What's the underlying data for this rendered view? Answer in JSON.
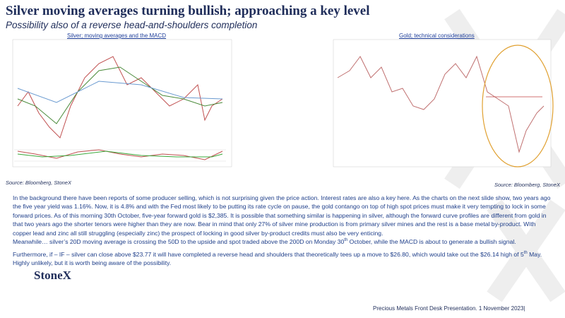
{
  "header": {
    "title": "Silver moving averages turning bullish; approaching a key level",
    "subtitle": "Possibility also of a reverse head-and-shoulders completion"
  },
  "figures": [
    {
      "caption": "Silver; moving averages and the MACD",
      "source": "Source: Bloomberg, StoneX"
    },
    {
      "caption": "Gold; technical considerations",
      "source": "Source: Bloomberg, StoneX"
    }
  ],
  "body": [
    [
      "In the background there have been reports of some producer selling, which is not surprising given the price action.  Interest rates are also a key here.  As the charts on the next slide show, two years ago the five year yield was 1.16%.  Now, it is 4.8% and with the Fed most likely to be putting its rate cycle on pause, the gold contango on top of high spot prices must make it very tempting to lock in some forward prices.  As of this morning 30th October, five-year forward gold is $2,385.  It is possible that something similar is happening  in silver, although the forward curve profiles are different from gold in that two years ago the shorter tenors were higher than they are now.  Bear in mind that only 27% of silver mine production is from primary silver mines and the rest is a base metal by-product.  With copper lead and zinc all still struggling (especially zinc) the prospect of locking in good silver by-product credits must also be very enticing."
    ],
    [
      "Meanwhile… silver’s 20D moving average is crossing the 50D to the upside and spot traded above the 200D on Monday 30",
      "th",
      " October, while the MACD is about to generate a bullish signal."
    ],
    [
      "Furthermore, if – IF – silver can close above $23.77 it will have completed a reverse head and shoulders that theoretically tees up a move to $26.80, which would take out the $26.14 high of 5",
      "th",
      " May.  Highly unlikely, but it is worth being aware of the possibility."
    ]
  ],
  "footer": {
    "logo": "StoneX",
    "note": "Precious Metals Front Desk Presentation. 1 November 2023|"
  }
}
